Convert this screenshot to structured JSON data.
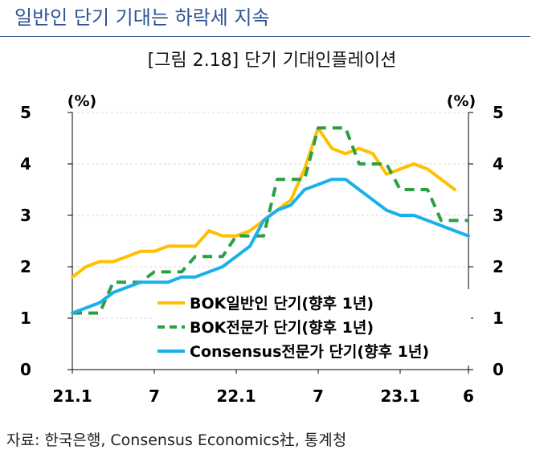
{
  "heading": "일반인 단기 기대는 하락세 지속",
  "source": "자료: 한국은행, Consensus Economics社, 통계청",
  "chart_data": {
    "type": "line",
    "title": "[그림 2.18] 단기 기대인플레이션",
    "y_unit_left": "(%)",
    "y_unit_right": "(%)",
    "ylim": [
      0,
      5
    ],
    "yticks": [
      0,
      1,
      2,
      3,
      4,
      5
    ],
    "grid": true,
    "legend_position": "bottom-right",
    "x_ticks": [
      {
        "label": "21.1",
        "index": 0
      },
      {
        "label": "7",
        "index": 6
      },
      {
        "label": "22.1",
        "index": 12
      },
      {
        "label": "7",
        "index": 18
      },
      {
        "label": "23.1",
        "index": 24
      },
      {
        "label": "6",
        "index": 29
      }
    ],
    "x": [
      "21.1",
      "21.2",
      "21.3",
      "21.4",
      "21.5",
      "21.6",
      "21.7",
      "21.8",
      "21.9",
      "21.10",
      "21.11",
      "21.12",
      "22.1",
      "22.2",
      "22.3",
      "22.4",
      "22.5",
      "22.6",
      "22.7",
      "22.8",
      "22.9",
      "22.10",
      "22.11",
      "22.12",
      "23.1",
      "23.2",
      "23.3",
      "23.4",
      "23.5",
      "23.6"
    ],
    "series": [
      {
        "name": "BOK일반인 단기(향후 1년)",
        "color": "#ffc000",
        "style": "solid",
        "values": [
          1.8,
          2.0,
          2.1,
          2.1,
          2.2,
          2.3,
          2.3,
          2.4,
          2.4,
          2.4,
          2.7,
          2.6,
          2.6,
          2.7,
          2.9,
          3.1,
          3.3,
          3.9,
          4.7,
          4.3,
          4.2,
          4.3,
          4.2,
          3.8,
          3.9,
          4.0,
          3.9,
          3.7,
          3.5,
          null
        ]
      },
      {
        "name": "BOK전문가 단기(향후 1년)",
        "color": "#2e9e45",
        "style": "dashed",
        "values": [
          1.1,
          1.1,
          1.1,
          1.7,
          1.7,
          1.7,
          1.9,
          1.9,
          1.9,
          2.2,
          2.2,
          2.2,
          2.6,
          2.6,
          2.6,
          3.7,
          3.7,
          3.7,
          4.7,
          4.7,
          4.7,
          4.0,
          4.0,
          4.0,
          3.5,
          3.5,
          3.5,
          2.9,
          2.9,
          2.9
        ]
      },
      {
        "name": "Consensus전문가 단기(향후 1년)",
        "color": "#1ab0ea",
        "style": "solid",
        "values": [
          1.1,
          1.2,
          1.3,
          1.5,
          1.6,
          1.7,
          1.7,
          1.7,
          1.8,
          1.8,
          1.9,
          2.0,
          2.2,
          2.4,
          2.9,
          3.1,
          3.2,
          3.5,
          3.6,
          3.7,
          3.7,
          3.5,
          3.3,
          3.1,
          3.0,
          3.0,
          2.9,
          2.8,
          2.7,
          2.6
        ]
      }
    ]
  }
}
